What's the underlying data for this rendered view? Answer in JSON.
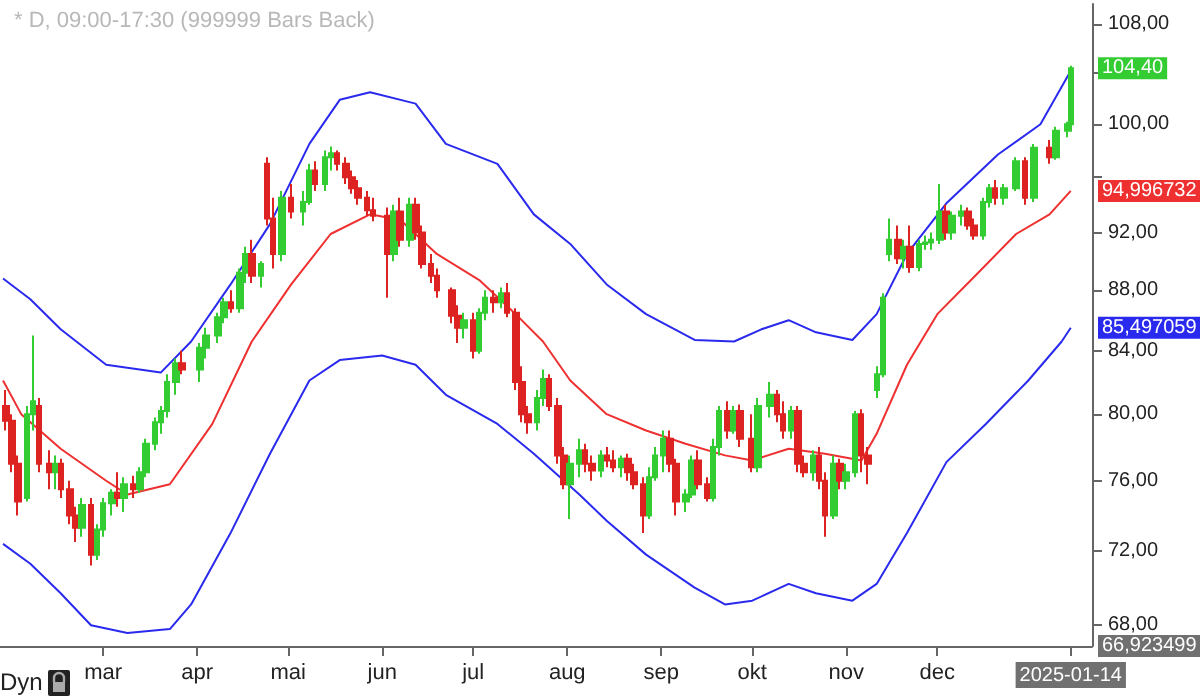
{
  "chart_data": {
    "type": "candlestick",
    "title": "* D, 09:00-17:30 (999999 Bars Back)",
    "log": "y",
    "grid": false,
    "marker": "none",
    "line_style": "solid",
    "xlim": [
      "2024-01-27",
      "2025-01-21"
    ],
    "xticks": [
      {
        "value": "2024-03-01",
        "label": "mar"
      },
      {
        "value": "2024-04-01",
        "label": "apr"
      },
      {
        "value": "2024-05-01",
        "label": "mai"
      },
      {
        "value": "2024-06-01",
        "label": "jun"
      },
      {
        "value": "2024-07-01",
        "label": "jul"
      },
      {
        "value": "2024-08-01",
        "label": "aug"
      },
      {
        "value": "2024-09-01",
        "label": "sep"
      },
      {
        "value": "2024-10-01",
        "label": "okt"
      },
      {
        "value": "2024-11-01",
        "label": "nov"
      },
      {
        "value": "2024-12-01",
        "label": "dec"
      },
      {
        "value": "2025-01-14",
        "label": "2025-01-14"
      }
    ],
    "ylim": [
      66.923499,
      109.7
    ],
    "yticks": [
      {
        "value": 68,
        "label": "68,00"
      },
      {
        "value": 72,
        "label": "72,00"
      },
      {
        "value": 76,
        "label": "76,00"
      },
      {
        "value": 80,
        "label": "80,00"
      },
      {
        "value": 84,
        "label": "84,00"
      },
      {
        "value": 88,
        "label": "88,00"
      },
      {
        "value": 92,
        "label": "92,00"
      },
      {
        "value": 96,
        "label": null
      },
      {
        "value": 100,
        "label": "100,00"
      },
      {
        "value": 104,
        "label": null
      },
      {
        "value": 108,
        "label": "108,00"
      }
    ],
    "annotations": [
      "Dyn",
      "66,923499"
    ],
    "series": [
      {
        "type": "line",
        "color": "#2a2aee",
        "x": [
          "2024-01-28",
          "2024-02-06",
          "2024-02-16",
          "2024-03-02",
          "2024-03-20",
          "2024-03-30",
          "2024-04-12",
          "2024-04-25",
          "2024-05-08",
          "2024-05-18",
          "2024-05-28",
          "2024-06-12",
          "2024-06-22",
          "2024-07-09",
          "2024-07-21",
          "2024-08-02",
          "2024-08-14",
          "2024-08-27",
          "2024-09-12",
          "2024-09-25",
          "2024-10-04",
          "2024-10-13",
          "2024-10-22",
          "2024-11-03",
          "2024-11-11",
          "2024-11-21",
          "2024-12-04",
          "2024-12-21",
          "2025-01-04",
          "2025-01-14"
        ],
        "values": [
          88.8,
          87.4,
          85.4,
          83.1,
          82.6,
          84.6,
          88.4,
          92.6,
          98.5,
          101.9,
          102.5,
          101.6,
          98.5,
          97.0,
          93.3,
          91.2,
          88.4,
          86.4,
          84.7,
          84.6,
          85.4,
          86.0,
          85.2,
          84.7,
          86.4,
          90.5,
          94.1,
          97.7,
          100.0,
          104.2
        ]
      },
      {
        "type": "line",
        "color": "#ee3030",
        "x": [
          "2024-01-28",
          "2024-02-03",
          "2024-02-16",
          "2024-03-02",
          "2024-03-09",
          "2024-03-23",
          "2024-04-06",
          "2024-04-19",
          "2024-05-02",
          "2024-05-15",
          "2024-05-28",
          "2024-06-07",
          "2024-06-19",
          "2024-07-03",
          "2024-07-15",
          "2024-07-24",
          "2024-08-02",
          "2024-08-14",
          "2024-08-27",
          "2024-09-09",
          "2024-09-22",
          "2024-10-01",
          "2024-10-13",
          "2024-10-25",
          "2024-11-06",
          "2024-11-11",
          "2024-11-21",
          "2024-12-01",
          "2024-12-14",
          "2024-12-27",
          "2025-01-07",
          "2025-01-14"
        ],
        "values": [
          82.1,
          80.0,
          77.9,
          76.0,
          75.2,
          75.8,
          79.4,
          84.6,
          88.4,
          91.9,
          93.3,
          92.9,
          90.5,
          88.7,
          86.4,
          84.6,
          82.1,
          80.0,
          79.0,
          78.2,
          77.5,
          77.2,
          77.9,
          77.6,
          77.2,
          78.8,
          83.1,
          86.4,
          89.1,
          91.9,
          93.3,
          94.996732
        ],
        "value_labels": [
          null,
          null,
          null,
          null,
          null,
          null,
          null,
          null,
          null,
          null,
          null,
          null,
          null,
          null,
          null,
          null,
          null,
          null,
          null,
          null,
          null,
          null,
          null,
          null,
          null,
          null,
          null,
          null,
          null,
          null,
          null,
          "94,996732"
        ]
      },
      {
        "type": "line",
        "color": "#2a2aee",
        "x": [
          "2024-01-28",
          "2024-02-06",
          "2024-02-16",
          "2024-02-26",
          "2024-03-09",
          "2024-03-23",
          "2024-03-30",
          "2024-04-12",
          "2024-04-25",
          "2024-05-08",
          "2024-05-18",
          "2024-06-01",
          "2024-06-12",
          "2024-06-22",
          "2024-07-09",
          "2024-07-21",
          "2024-08-05",
          "2024-08-14",
          "2024-08-27",
          "2024-09-12",
          "2024-09-22",
          "2024-10-01",
          "2024-10-13",
          "2024-10-22",
          "2024-11-03",
          "2024-11-11",
          "2024-11-21",
          "2024-12-04",
          "2024-12-17",
          "2024-12-31",
          "2025-01-11",
          "2025-01-14"
        ],
        "values": [
          72.4,
          71.3,
          69.7,
          68.0,
          67.6,
          67.8,
          69.1,
          73.0,
          77.6,
          82.1,
          83.4,
          83.7,
          83.1,
          81.2,
          79.4,
          77.6,
          75.2,
          73.7,
          71.8,
          70.0,
          69.1,
          69.3,
          70.2,
          69.7,
          69.3,
          70.2,
          73.0,
          77.1,
          79.4,
          82.1,
          84.6,
          85.497059
        ],
        "value_labels": [
          null,
          null,
          null,
          null,
          null,
          null,
          null,
          null,
          null,
          null,
          null,
          null,
          null,
          null,
          null,
          null,
          null,
          null,
          null,
          null,
          null,
          null,
          null,
          null,
          null,
          null,
          null,
          null,
          null,
          null,
          null,
          "85,497059"
        ]
      },
      {
        "colors": [
          "#dd2222",
          "#dd2222",
          "#dd2222",
          "#33cc33",
          "#33cc33",
          "#dd2222",
          "#dd2222",
          "#33cc33",
          "#dd2222",
          "#dd2222",
          "#dd2222",
          "#33cc33",
          "#dd2222",
          "#33cc33",
          "#33cc33",
          "#33cc33",
          "#dd2222",
          "#33cc33",
          "#dd2222",
          "#33cc33",
          "#33cc33",
          "#33cc33",
          "#33cc33",
          "#33cc33",
          "#33cc33",
          "#dd2222",
          "#33cc33",
          "#33cc33",
          "#33cc33",
          "#33cc33",
          "#dd2222",
          "#33cc33",
          "#33cc33",
          "#dd2222",
          "#33cc33",
          "#dd2222",
          "#dd2222",
          "#33cc33",
          "#dd2222",
          "#33cc33",
          "#33cc33",
          "#dd2222",
          "#33cc33",
          "#33cc33",
          "#dd2222",
          "#dd2222",
          "#dd2222",
          "#dd2222",
          "#dd2222",
          "#dd2222",
          "#dd2222",
          "#33cc33",
          "#dd2222",
          "#33cc33",
          "#dd2222",
          "#dd2222",
          "#dd2222",
          "#dd2222",
          "#dd2222",
          "#dd2222",
          "#33cc33",
          "#dd2222",
          "#33cc33",
          "#33cc33",
          "#dd2222",
          "#33cc33",
          "#dd2222",
          "#dd2222",
          "#dd2222",
          "#dd2222",
          "#33cc33",
          "#33cc33",
          "#dd2222",
          "#dd2222",
          "#dd2222",
          "#33cc33",
          "#33cc33",
          "#dd2222",
          "#dd2222",
          "#33cc33",
          "#dd2222",
          "#dd2222",
          "#33cc33",
          "#dd2222",
          "#dd2222",
          "#dd2222",
          "#33cc33",
          "#33cc33",
          "#33cc33",
          "#dd2222",
          "#dd2222",
          "#33cc33",
          "#33cc33",
          "#dd2222",
          "#dd2222",
          "#33cc33",
          "#33cc33",
          "#dd2222",
          "#33cc33",
          "#dd2222",
          "#dd2222",
          "#33cc33",
          "#33cc33",
          "#dd2222",
          "#dd2222",
          "#33cc33",
          "#dd2222",
          "#dd2222",
          "#33cc33",
          "#dd2222",
          "#dd2222",
          "#33cc33",
          "#dd2222",
          "#33cc33",
          "#33cc33",
          "#dd2222",
          "#dd2222",
          "#33cc33",
          "#33cc33",
          "#33cc33",
          "#dd2222",
          "#33cc33",
          "#dd2222",
          "#33cc33",
          "#33cc33",
          "#33cc33",
          "#33cc33",
          "#dd2222",
          "#33cc33",
          "#33cc33",
          "#dd2222",
          "#dd2222",
          "#33cc33",
          "#33cc33",
          "#dd2222",
          "#33cc33",
          "#33cc33",
          "#dd2222",
          "#33cc33",
          "#dd2222",
          "#33cc33",
          "#33cc33",
          "#33cc33"
        ],
        "x": [
          "2024-01-29",
          "2024-01-31",
          "2024-02-02",
          "2024-02-05",
          "2024-02-07",
          "2024-02-09",
          "2024-02-12",
          "2024-02-14",
          "2024-02-16",
          "2024-02-19",
          "2024-02-21",
          "2024-02-23",
          "2024-02-26",
          "2024-02-28",
          "2024-03-01",
          "2024-03-04",
          "2024-03-06",
          "2024-03-08",
          "2024-03-11",
          "2024-03-13",
          "2024-03-15",
          "2024-03-18",
          "2024-03-20",
          "2024-03-22",
          "2024-03-25",
          "2024-03-27",
          "2024-04-02",
          "2024-04-04",
          "2024-04-08",
          "2024-04-10",
          "2024-04-12",
          "2024-04-15",
          "2024-04-17",
          "2024-04-19",
          "2024-04-22",
          "2024-04-24",
          "2024-04-26",
          "2024-04-29",
          "2024-05-02",
          "2024-05-06",
          "2024-05-08",
          "2024-05-10",
          "2024-05-13",
          "2024-05-15",
          "2024-05-17",
          "2024-05-20",
          "2024-05-22",
          "2024-05-24",
          "2024-05-27",
          "2024-05-29",
          "2024-06-03",
          "2024-06-05",
          "2024-06-07",
          "2024-06-10",
          "2024-06-12",
          "2024-06-14",
          "2024-06-17",
          "2024-06-19",
          "2024-06-24",
          "2024-06-26",
          "2024-06-28",
          "2024-07-01",
          "2024-07-03",
          "2024-07-05",
          "2024-07-08",
          "2024-07-10",
          "2024-07-12",
          "2024-07-15",
          "2024-07-17",
          "2024-07-19",
          "2024-07-22",
          "2024-07-24",
          "2024-07-26",
          "2024-07-29",
          "2024-07-31",
          "2024-08-02",
          "2024-08-05",
          "2024-08-07",
          "2024-08-09",
          "2024-08-12",
          "2024-08-14",
          "2024-08-16",
          "2024-08-19",
          "2024-08-21",
          "2024-08-23",
          "2024-08-26",
          "2024-08-28",
          "2024-08-30",
          "2024-09-02",
          "2024-09-04",
          "2024-09-06",
          "2024-09-09",
          "2024-09-11",
          "2024-09-13",
          "2024-09-16",
          "2024-09-18",
          "2024-09-20",
          "2024-09-23",
          "2024-09-25",
          "2024-09-27",
          "2024-10-01",
          "2024-10-03",
          "2024-10-07",
          "2024-10-09",
          "2024-10-11",
          "2024-10-14",
          "2024-10-16",
          "2024-10-18",
          "2024-10-21",
          "2024-10-23",
          "2024-10-25",
          "2024-10-28",
          "2024-10-30",
          "2024-11-01",
          "2024-11-04",
          "2024-11-06",
          "2024-11-08",
          "2024-11-11",
          "2024-11-13",
          "2024-11-15",
          "2024-11-18",
          "2024-11-20",
          "2024-11-22",
          "2024-11-25",
          "2024-11-27",
          "2024-11-29",
          "2024-12-02",
          "2024-12-04",
          "2024-12-06",
          "2024-12-09",
          "2024-12-11",
          "2024-12-13",
          "2024-12-16",
          "2024-12-18",
          "2024-12-20",
          "2024-12-23",
          "2024-12-27",
          "2024-12-30",
          "2025-01-02",
          "2025-01-07",
          "2025-01-09",
          "2025-01-13",
          "2025-01-14"
        ],
        "ohlc": [
          [
            80.5,
            81.5,
            79,
            79.6
          ],
          [
            79.6,
            80,
            76.5,
            77
          ],
          [
            77,
            77.5,
            74,
            74.8
          ],
          [
            75,
            80.5,
            74.8,
            80
          ],
          [
            80,
            85,
            79,
            80.8
          ],
          [
            80.5,
            81,
            76.5,
            77
          ],
          [
            77,
            77.8,
            75.5,
            76.5
          ],
          [
            76.5,
            77.5,
            75.5,
            77
          ],
          [
            77,
            77.3,
            75,
            75.5
          ],
          [
            75.5,
            76,
            73.5,
            74
          ],
          [
            74,
            74.5,
            72.5,
            73.3
          ],
          [
            73.3,
            75,
            72.8,
            74.6
          ],
          [
            74.6,
            75,
            71.2,
            71.8
          ],
          [
            71.8,
            73.5,
            71.5,
            73.2
          ],
          [
            73.2,
            75,
            72.8,
            74.7
          ],
          [
            74.7,
            75.5,
            74,
            75.3
          ],
          [
            75.3,
            76.5,
            74.5,
            75
          ],
          [
            75,
            76.2,
            74.2,
            75.8
          ],
          [
            75.8,
            76.3,
            75,
            75.5
          ],
          [
            75.5,
            76.8,
            75.3,
            76.5
          ],
          [
            76.5,
            78.5,
            76.2,
            78.2
          ],
          [
            78.2,
            79.8,
            77.8,
            79.5
          ],
          [
            79.5,
            80.5,
            78.8,
            80.2
          ],
          [
            80.2,
            82.5,
            79.8,
            82
          ],
          [
            82,
            83.5,
            81.2,
            83.2
          ],
          [
            83.2,
            84,
            82.5,
            82.8
          ],
          [
            82.8,
            84.5,
            82,
            84.2
          ],
          [
            84.2,
            85.5,
            83.5,
            85
          ],
          [
            85,
            86.5,
            84.5,
            86.2
          ],
          [
            86.2,
            87.5,
            85.8,
            87.2
          ],
          [
            87.2,
            88,
            86.5,
            86.8
          ],
          [
            86.8,
            89.5,
            86.5,
            89.2
          ],
          [
            89.2,
            91,
            88.5,
            90.5
          ],
          [
            90.5,
            91.5,
            88.5,
            89
          ],
          [
            89,
            90,
            88.2,
            89.8
          ],
          [
            97,
            97.5,
            92.5,
            93
          ],
          [
            93,
            94.5,
            89.5,
            90.5
          ],
          [
            90.5,
            95,
            90,
            94.5
          ],
          [
            94.5,
            95.5,
            93,
            93.5
          ],
          [
            93.5,
            95,
            92.5,
            94.2
          ],
          [
            94.2,
            97,
            94,
            96.5
          ],
          [
            96.5,
            97.2,
            95,
            95.5
          ],
          [
            95.5,
            98,
            95,
            97.5
          ],
          [
            97.5,
            98.3,
            96.5,
            97.8
          ],
          [
            97.8,
            98,
            96.5,
            97
          ],
          [
            97,
            97.5,
            95.5,
            96
          ],
          [
            96,
            96.5,
            94.8,
            95.2
          ],
          [
            95.2,
            95.8,
            94,
            94.5
          ],
          [
            94.5,
            95,
            93.2,
            93.6
          ],
          [
            93.6,
            94.5,
            92.8,
            93.2
          ],
          [
            93.2,
            93.8,
            87.5,
            90.5
          ],
          [
            90.5,
            94,
            90,
            93.5
          ],
          [
            93.5,
            94.5,
            91,
            91.5
          ],
          [
            91.5,
            94.5,
            91,
            94
          ],
          [
            94,
            94.5,
            91.5,
            92
          ],
          [
            92,
            92.5,
            89.5,
            89.8
          ],
          [
            89.8,
            90.5,
            88.5,
            89
          ],
          [
            89,
            89.5,
            87.5,
            88
          ],
          [
            88,
            88.2,
            85.8,
            86.3
          ],
          [
            86.3,
            87,
            84.5,
            85.5
          ],
          [
            85.5,
            86.5,
            84.8,
            86
          ],
          [
            86,
            86.5,
            83.5,
            84
          ],
          [
            84,
            86.8,
            83.8,
            86.5
          ],
          [
            86.5,
            88,
            86,
            87.5
          ],
          [
            87.5,
            88,
            86.5,
            87.2
          ],
          [
            87.2,
            88.2,
            86.8,
            87.8
          ],
          [
            87.8,
            88.5,
            86.2,
            86.5
          ],
          [
            86.5,
            86.8,
            81.5,
            82
          ],
          [
            82,
            83,
            79.5,
            80
          ],
          [
            80,
            80.5,
            78.8,
            79.5
          ],
          [
            79.5,
            81.5,
            79,
            81
          ],
          [
            81,
            82.8,
            80.5,
            82.2
          ],
          [
            82.2,
            82.5,
            80.2,
            80.5
          ],
          [
            80.5,
            81,
            77,
            77.5
          ],
          [
            77.5,
            78,
            75.5,
            75.8
          ],
          [
            75.8,
            77.5,
            73.8,
            77
          ],
          [
            77,
            78.5,
            76.2,
            77.8
          ],
          [
            77.8,
            78.2,
            76.5,
            77
          ],
          [
            77,
            77.5,
            76,
            76.6
          ],
          [
            76.6,
            77.8,
            76.2,
            77.5
          ],
          [
            77.5,
            78,
            76.8,
            77.2
          ],
          [
            77.2,
            77.8,
            76.5,
            76.8
          ],
          [
            76.8,
            77.5,
            76.2,
            77.3
          ],
          [
            77.3,
            77.6,
            76,
            76.5
          ],
          [
            76.5,
            77,
            75.5,
            75.8
          ],
          [
            75.8,
            76.2,
            73,
            74
          ],
          [
            74,
            76.8,
            73.8,
            76.2
          ],
          [
            76.2,
            78,
            76,
            77.5
          ],
          [
            77.5,
            79,
            76.5,
            78.5
          ],
          [
            78.5,
            79,
            76.5,
            77
          ],
          [
            77,
            77.3,
            74,
            74.8
          ],
          [
            74.8,
            75.5,
            74.2,
            75.2
          ],
          [
            75.2,
            77.5,
            75,
            77.2
          ],
          [
            77.2,
            77.8,
            75.5,
            75.8
          ],
          [
            75.8,
            76.2,
            74.8,
            75
          ],
          [
            75,
            78.5,
            74.8,
            78
          ],
          [
            78,
            80.5,
            77.5,
            80.2
          ],
          [
            80.2,
            80.8,
            78.5,
            79
          ],
          [
            79,
            80.5,
            78.8,
            80.2
          ],
          [
            80.2,
            80.6,
            78,
            78.5
          ],
          [
            78.5,
            80,
            76.5,
            76.8
          ],
          [
            76.8,
            81,
            76.5,
            80.5
          ],
          [
            80.5,
            82,
            79.8,
            81.2
          ],
          [
            81.2,
            81.5,
            79.5,
            80
          ],
          [
            80,
            80.8,
            78.5,
            79
          ],
          [
            79,
            80.5,
            78.5,
            80.2
          ],
          [
            80.2,
            80.5,
            76.5,
            77
          ],
          [
            77,
            77.5,
            76.2,
            76.5
          ],
          [
            76.5,
            77.8,
            76,
            77.5
          ],
          [
            77.5,
            78,
            75.5,
            76
          ],
          [
            76,
            76.5,
            72.8,
            74
          ],
          [
            74,
            77.5,
            73.8,
            77
          ],
          [
            77,
            77.3,
            75.5,
            76
          ],
          [
            76,
            77,
            75.5,
            76.5
          ],
          [
            76.5,
            80.2,
            76.2,
            80
          ],
          [
            80,
            80.3,
            76.5,
            77.5
          ],
          [
            77.5,
            78,
            75.8,
            77
          ],
          [
            81.5,
            83,
            81,
            82.5
          ],
          [
            82.5,
            87.8,
            82.3,
            87.5
          ],
          [
            90.5,
            93,
            90,
            91.5
          ],
          [
            91.5,
            92.5,
            89.8,
            90.2
          ],
          [
            90.2,
            91.5,
            89.5,
            91
          ],
          [
            91,
            92.5,
            89.2,
            89.6
          ],
          [
            89.6,
            91.5,
            89.3,
            91.2
          ],
          [
            91.2,
            91.8,
            90.8,
            91.3
          ],
          [
            91.3,
            92,
            90.8,
            91.5
          ],
          [
            91.5,
            95.5,
            91.2,
            93.5
          ],
          [
            93.5,
            94,
            91.5,
            92
          ],
          [
            92,
            93.5,
            91.5,
            93.2
          ],
          [
            93.2,
            94,
            92.5,
            93.5
          ],
          [
            93.5,
            93.8,
            92.2,
            92.5
          ],
          [
            92.5,
            93,
            91.5,
            91.8
          ],
          [
            91.8,
            94.5,
            91.5,
            94.2
          ],
          [
            94.2,
            95.5,
            93.8,
            95.2
          ],
          [
            95.2,
            95.8,
            94,
            94.5
          ],
          [
            94.5,
            95.5,
            94,
            95.2
          ],
          [
            95.2,
            97.5,
            95,
            97.2
          ],
          [
            97.2,
            97.5,
            94,
            94.5
          ],
          [
            94.5,
            98.5,
            94.2,
            98.2
          ],
          [
            98.2,
            98.8,
            97,
            97.5
          ],
          [
            97.5,
            99.8,
            97.3,
            99.5
          ],
          [
            99.5,
            100.2,
            99,
            100
          ],
          [
            100,
            104.6,
            99.8,
            104.4
          ]
        ],
        "value_labels": [
          null,
          null,
          null,
          null,
          null,
          null,
          null,
          null,
          null,
          null,
          null,
          null,
          null,
          null,
          null,
          null,
          null,
          null,
          null,
          null,
          null,
          null,
          null,
          null,
          null,
          null,
          null,
          null,
          null,
          null,
          null,
          null,
          null,
          null,
          null,
          null,
          null,
          null,
          null,
          null,
          null,
          null,
          null,
          null,
          null,
          null,
          null,
          null,
          null,
          null,
          null,
          null,
          null,
          null,
          null,
          null,
          null,
          null,
          null,
          null,
          null,
          null,
          null,
          null,
          null,
          null,
          null,
          null,
          null,
          null,
          null,
          null,
          null,
          null,
          null,
          null,
          null,
          null,
          null,
          null,
          null,
          null,
          null,
          null,
          null,
          null,
          null,
          null,
          null,
          null,
          null,
          null,
          null,
          null,
          null,
          null,
          null,
          null,
          null,
          null,
          null,
          null,
          null,
          null,
          null,
          null,
          null,
          null,
          null,
          null,
          null,
          null,
          null,
          null,
          null,
          null,
          null,
          null,
          null,
          null,
          null,
          null,
          null,
          null,
          null,
          null,
          null,
          null,
          null,
          null,
          null,
          null,
          null,
          null,
          null,
          null,
          null,
          null,
          null,
          null,
          null,
          null,
          "104,40"
        ]
      }
    ]
  }
}
